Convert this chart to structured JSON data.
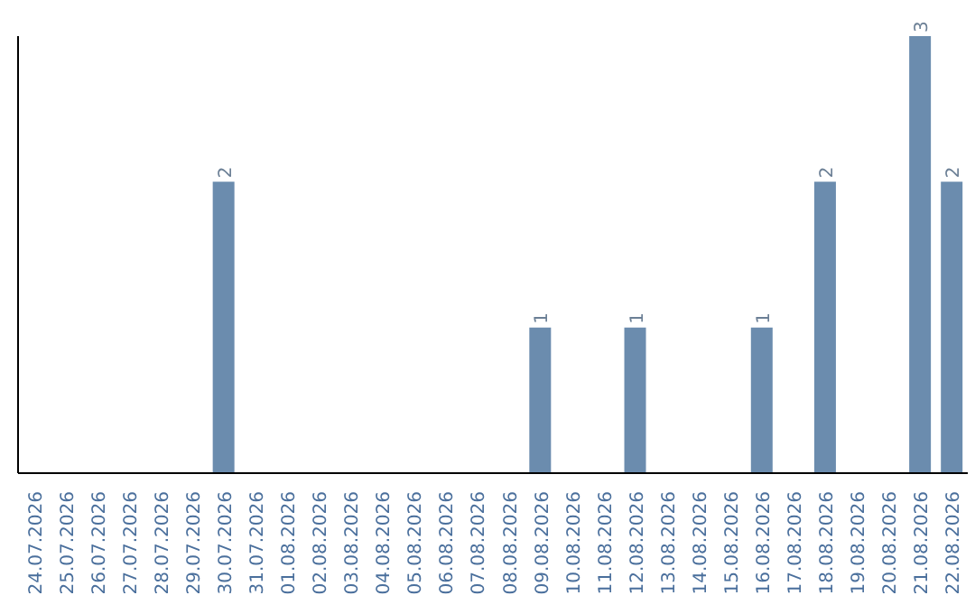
{
  "chart_data": {
    "type": "bar",
    "categories": [
      "24.07.2026",
      "25.07.2026",
      "26.07.2026",
      "27.07.2026",
      "28.07.2026",
      "29.07.2026",
      "30.07.2026",
      "31.07.2026",
      "01.08.2026",
      "02.08.2026",
      "03.08.2026",
      "04.08.2026",
      "05.08.2026",
      "06.08.2026",
      "07.08.2026",
      "08.08.2026",
      "09.08.2026",
      "10.08.2026",
      "11.08.2026",
      "12.08.2026",
      "13.08.2026",
      "14.08.2026",
      "15.08.2026",
      "16.08.2026",
      "17.08.2026",
      "18.08.2026",
      "19.08.2026",
      "20.08.2026",
      "21.08.2026",
      "22.08.2026"
    ],
    "values": [
      0,
      0,
      0,
      0,
      0,
      0,
      2,
      0,
      0,
      0,
      0,
      0,
      0,
      0,
      0,
      0,
      1,
      0,
      0,
      1,
      0,
      0,
      0,
      1,
      0,
      2,
      0,
      0,
      3,
      2
    ],
    "value_labels": [
      null,
      null,
      null,
      null,
      null,
      null,
      "2",
      null,
      null,
      null,
      null,
      null,
      null,
      null,
      null,
      null,
      "1",
      null,
      null,
      "1",
      null,
      null,
      null,
      "1",
      null,
      "2",
      null,
      null,
      "3",
      "2"
    ],
    "color": "#6b8cae",
    "ylim": [
      0,
      3
    ],
    "tick_labels": "x",
    "grid": false,
    "legend": false
  }
}
